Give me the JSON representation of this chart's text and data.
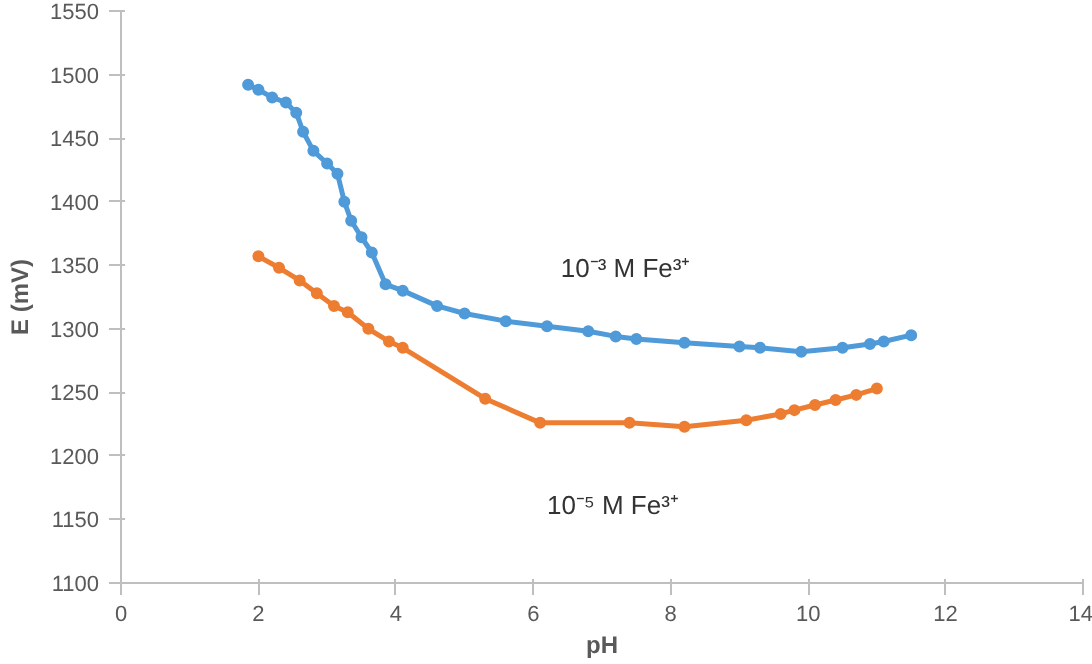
{
  "chart_data": {
    "type": "line",
    "xlabel": "pH",
    "ylabel": "E (mV)",
    "xlim": [
      0,
      14
    ],
    "xticks": [
      0,
      2,
      4,
      6,
      8,
      10,
      12,
      14
    ],
    "ylim": [
      1100,
      1550
    ],
    "yticks": [
      1100,
      1150,
      1200,
      1250,
      1300,
      1350,
      1400,
      1450,
      1500,
      1550
    ],
    "grid": false,
    "marker": "circle",
    "line_style": "solid",
    "series": [
      {
        "name": "10⁻³ M Fe³⁺",
        "color": "#4f9ad8",
        "x": [
          1.85,
          2.0,
          2.2,
          2.4,
          2.55,
          2.65,
          2.8,
          3.0,
          3.15,
          3.25,
          3.35,
          3.5,
          3.65,
          3.85,
          4.1,
          4.6,
          5.0,
          5.6,
          6.2,
          6.8,
          7.2,
          7.5,
          8.2,
          9.0,
          9.3,
          9.9,
          10.5,
          10.9,
          11.1,
          11.5
        ],
        "values": [
          1492,
          1488,
          1482,
          1478,
          1470,
          1455,
          1440,
          1430,
          1422,
          1400,
          1385,
          1372,
          1360,
          1335,
          1330,
          1318,
          1312,
          1306,
          1302,
          1298,
          1294,
          1292,
          1289,
          1286,
          1285,
          1282,
          1285,
          1288,
          1290,
          1295
        ]
      },
      {
        "name": "10⁻⁵ M Fe³⁺",
        "color": "#ed7d31",
        "x": [
          2.0,
          2.3,
          2.6,
          2.85,
          3.1,
          3.3,
          3.6,
          3.9,
          4.1,
          5.3,
          6.1,
          7.4,
          8.2,
          9.1,
          9.6,
          9.8,
          10.1,
          10.4,
          10.7,
          11.0
        ],
        "values": [
          1357,
          1348,
          1338,
          1328,
          1318,
          1313,
          1300,
          1290,
          1285,
          1245,
          1226,
          1226,
          1223,
          1228,
          1233,
          1236,
          1240,
          1244,
          1248,
          1253
        ]
      }
    ]
  }
}
